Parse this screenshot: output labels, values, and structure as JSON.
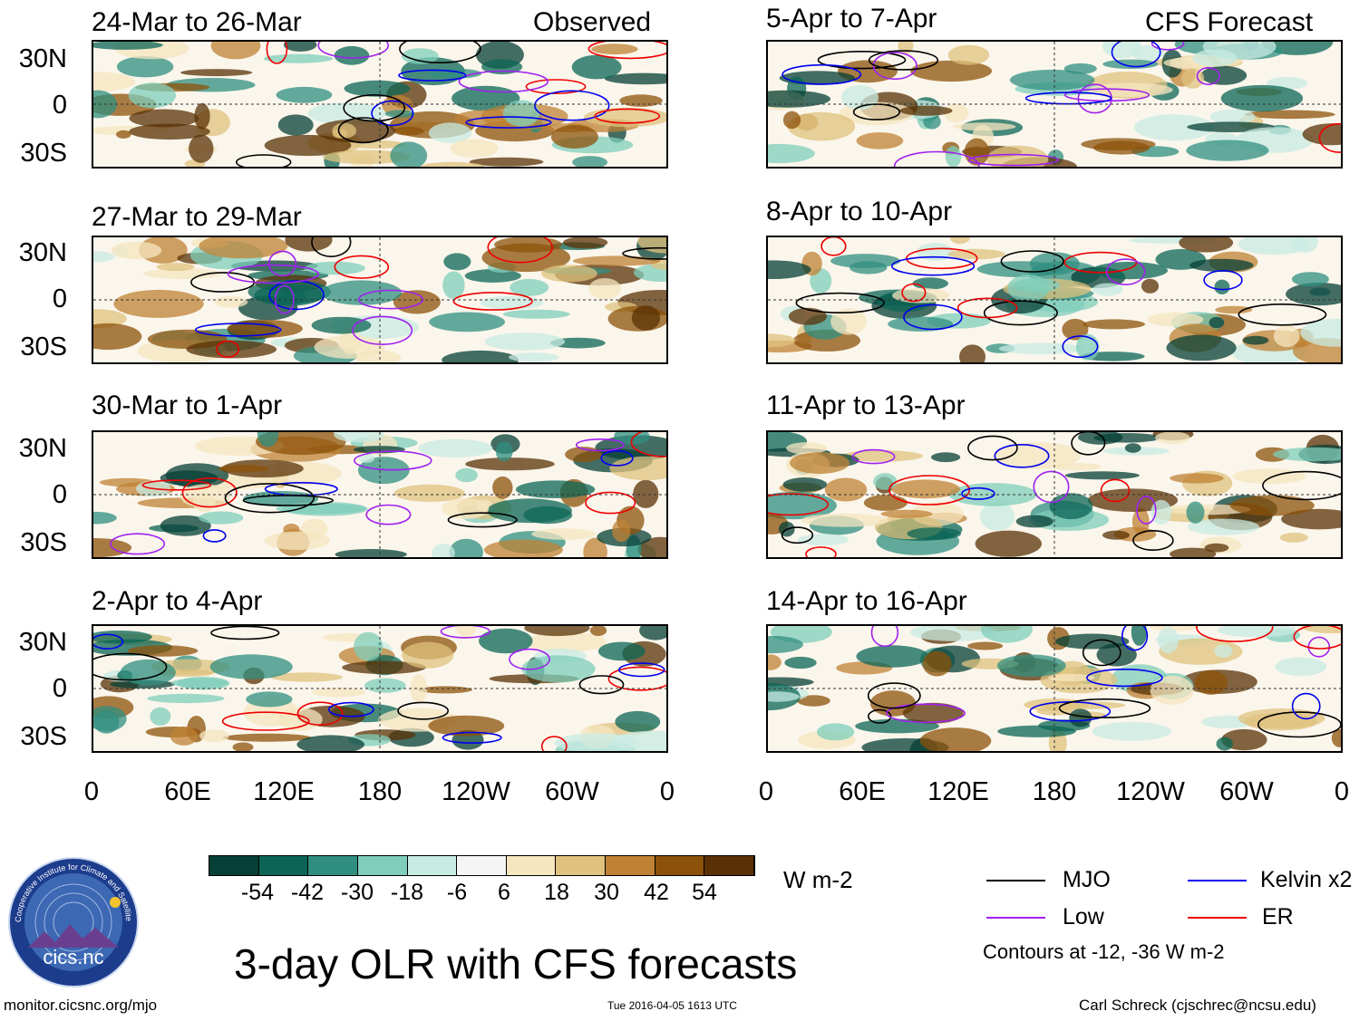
{
  "column_headers": {
    "observed": "Observed",
    "forecast": "CFS Forecast"
  },
  "panels": [
    {
      "title": "24-Mar to 26-Mar",
      "column": "observed"
    },
    {
      "title": "27-Mar to 29-Mar",
      "column": "observed"
    },
    {
      "title": "30-Mar to 1-Apr",
      "column": "observed"
    },
    {
      "title": "2-Apr to 4-Apr",
      "column": "observed"
    },
    {
      "title": "5-Apr to 7-Apr",
      "column": "forecast"
    },
    {
      "title": "8-Apr to 10-Apr",
      "column": "forecast"
    },
    {
      "title": "11-Apr to 13-Apr",
      "column": "forecast"
    },
    {
      "title": "14-Apr to 16-Apr",
      "column": "forecast"
    }
  ],
  "lat_labels": [
    "30N",
    "0",
    "30S"
  ],
  "lon_labels": [
    "0",
    "60E",
    "120E",
    "180",
    "120W",
    "60W",
    "0"
  ],
  "colorbar": {
    "colors": [
      "#063f35",
      "#0b6556",
      "#308f80",
      "#7fcdbb",
      "#c8ebe3",
      "#f5f5f5",
      "#f6e6c0",
      "#dfc27d",
      "#bf8134",
      "#8c510a",
      "#5a3105"
    ],
    "labels": [
      "-54",
      "-42",
      "-30",
      "-18",
      "-6",
      "6",
      "18",
      "30",
      "42",
      "54"
    ],
    "units": "W m-2"
  },
  "legend": {
    "items": [
      {
        "label": "MJO",
        "color": "#000000"
      },
      {
        "label": "Kelvin x2",
        "color": "#0000ee"
      },
      {
        "label": "Low",
        "color": "#a020f0"
      },
      {
        "label": "ER",
        "color": "#ee0000"
      }
    ],
    "note": "Contours at -12, -36 W m-2"
  },
  "main_title": "3-day OLR with CFS forecasts",
  "logo_text": "cics.nc",
  "logo_ring_text": "Cooperative Institute for Climate and Satellites",
  "footer": {
    "left": "monitor.cicsnc.org/mjo",
    "center": "Tue 2016-04-05 1613 UTC",
    "right": "Carl Schreck (cjschrec@ncsu.edu)"
  }
}
